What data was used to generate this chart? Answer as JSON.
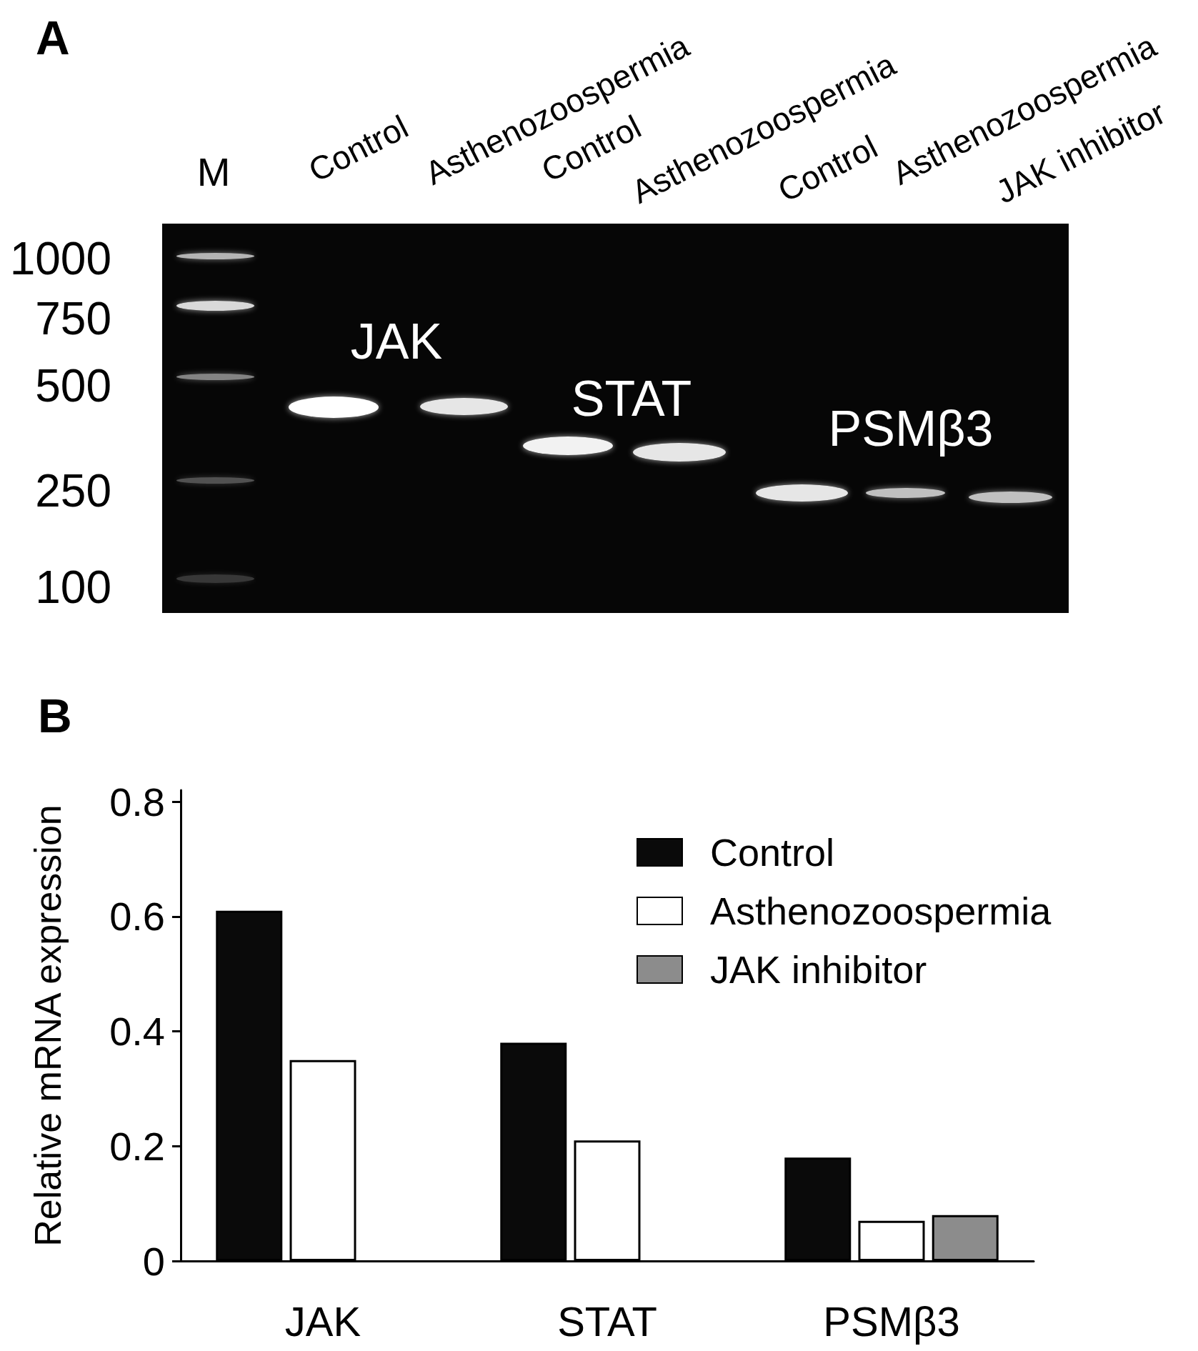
{
  "chart_data": [
    {
      "type": "other",
      "title": "A",
      "categories": [
        "M",
        "Control",
        "Asthenozoospermia",
        "Control",
        "Asthenozoospermia",
        "Control",
        "Asthenozoospermia",
        "JAK inhibitor"
      ],
      "annotations": [
        "1000",
        "750",
        "500",
        "250",
        "100",
        "JAK",
        "STAT",
        "PSMβ3"
      ]
    },
    {
      "type": "bar",
      "title": "B",
      "ylabel": "Relative mRNA expression",
      "categories": [
        "JAK",
        "STAT",
        "PSMβ3"
      ],
      "series": [
        {
          "name": "Control",
          "color": "#0a0a0a",
          "values": [
            0.61,
            0.38,
            0.18
          ]
        },
        {
          "name": "Asthenozoospermia",
          "color": "#ffffff",
          "values": [
            0.35,
            0.21,
            0.07
          ]
        },
        {
          "name": "JAK inhibitor",
          "color": "#8c8c8c",
          "values": [
            null,
            null,
            0.08
          ]
        }
      ],
      "ylim": [
        0,
        0.82
      ],
      "yticks": [
        0,
        0.2,
        0.4,
        0.6,
        0.8
      ],
      "legend": "top right"
    }
  ]
}
